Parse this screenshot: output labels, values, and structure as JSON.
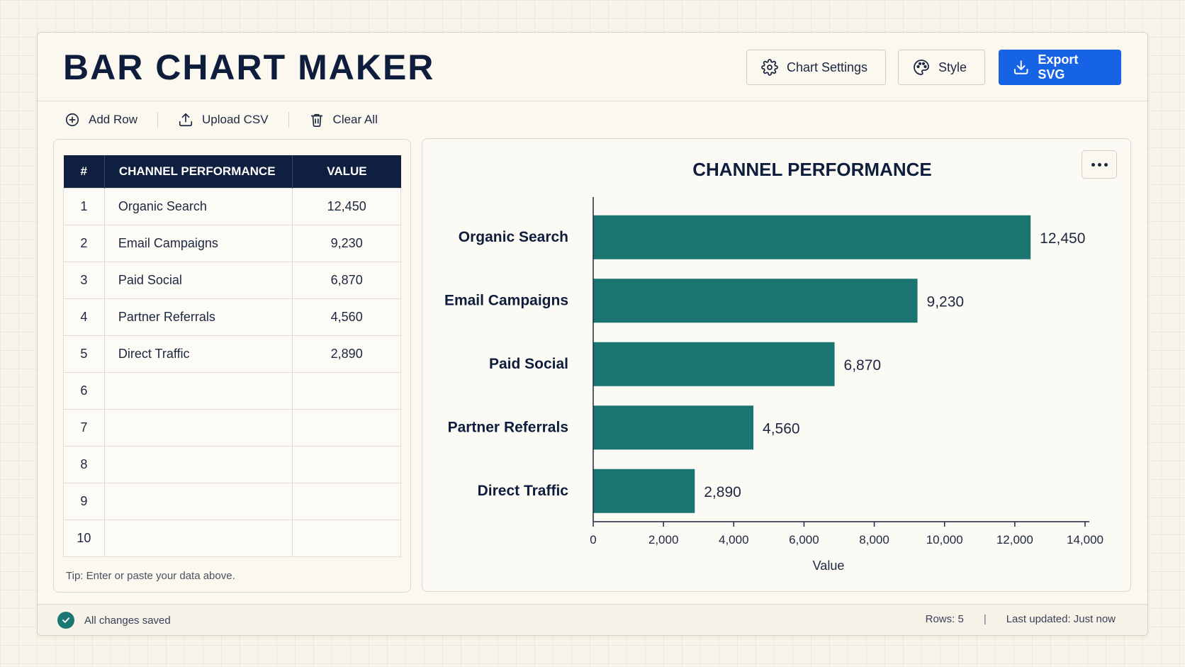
{
  "header": {
    "title": "BAR CHART MAKER",
    "chart_settings_label": "Chart Settings",
    "style_label": "Style",
    "export_label": "Export SVG"
  },
  "toolbar": {
    "add_row_label": "Add Row",
    "upload_csv_label": "Upload CSV",
    "clear_all_label": "Clear All"
  },
  "table": {
    "headers": [
      "#",
      "CHANNEL PERFORMANCE",
      "VALUE"
    ],
    "rows": [
      {
        "num": "1",
        "name": "Organic Search",
        "value": "12,450"
      },
      {
        "num": "2",
        "name": "Email Campaigns",
        "value": "9,230"
      },
      {
        "num": "3",
        "name": "Paid Social",
        "value": "6,870"
      },
      {
        "num": "4",
        "name": "Partner Referrals",
        "value": "4,560"
      },
      {
        "num": "5",
        "name": "Direct Traffic",
        "value": "2,890"
      },
      {
        "num": "6",
        "name": "",
        "value": ""
      },
      {
        "num": "7",
        "name": "",
        "value": ""
      },
      {
        "num": "8",
        "name": "",
        "value": ""
      },
      {
        "num": "9",
        "name": "",
        "value": ""
      },
      {
        "num": "10",
        "name": "",
        "value": ""
      }
    ],
    "tip": "Tip: Enter or paste your data above."
  },
  "chart_data": {
    "type": "bar",
    "orientation": "horizontal",
    "title": "CHANNEL PERFORMANCE",
    "categories": [
      "Organic Search",
      "Email Campaigns",
      "Paid Social",
      "Partner Referrals",
      "Direct Traffic"
    ],
    "values": [
      12450,
      9230,
      6870,
      4560,
      2890
    ],
    "value_labels": [
      "12,450",
      "9,230",
      "6,870",
      "4,560",
      "2,890"
    ],
    "xlabel": "Value",
    "ylabel": "",
    "xlim": [
      0,
      14000
    ],
    "xticks": [
      0,
      2000,
      4000,
      6000,
      8000,
      10000,
      12000,
      14000
    ],
    "xtick_labels": [
      "0",
      "2,000",
      "4,000",
      "6,000",
      "8,000",
      "10,000",
      "12,000",
      "14,000"
    ],
    "grid": false,
    "bar_color": "#1a7571"
  },
  "status": {
    "saved": "All changes saved",
    "rows": "Rows: 5",
    "separator": "|",
    "updated": "Last updated: Just now"
  },
  "colors": {
    "accent": "#1763e6",
    "header_dark": "#0f1f3f",
    "bar": "#1a7571",
    "success": "#1a7874"
  },
  "icons": {
    "settings": "gear-icon",
    "style": "palette-icon",
    "export": "download-icon",
    "add_row": "plus-circle-icon",
    "upload": "upload-icon",
    "clear": "trash-icon",
    "more": "more-horizontal-icon",
    "saved": "check-circle-icon"
  }
}
